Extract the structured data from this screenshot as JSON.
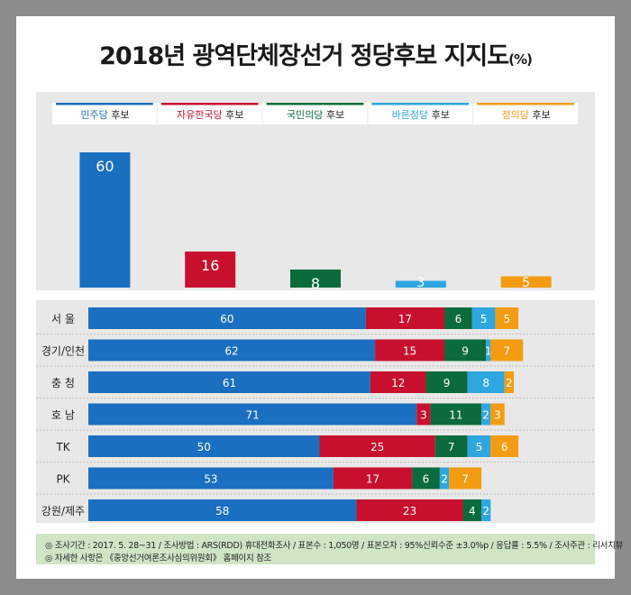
{
  "title": "2018년 광역단체장선거 정당후보 지지도",
  "title_unit": "(%)",
  "colors": {
    "minju": "#1a6fc0",
    "jayu": "#c8102e",
    "gukmin": "#0b6b3a",
    "bareun": "#2ea7e0",
    "jeongui": "#f39c12"
  },
  "chart_data": [
    {
      "type": "bar",
      "categories": [
        "민주당 후보",
        "자유한국당 후보",
        "국민의당 후보",
        "바른정당 후보",
        "정의당 후보"
      ],
      "legend_parties": [
        "민주당",
        "자유한국당",
        "국민의당",
        "바른정당",
        "정의당"
      ],
      "legend_suffix": "후보",
      "values": [
        60,
        16,
        8,
        3,
        5
      ],
      "ylim": [
        0,
        60
      ]
    },
    {
      "type": "bar",
      "stacked": true,
      "orientation": "horizontal",
      "categories": [
        "서 울",
        "경기/인천",
        "충 청",
        "호 남",
        "TK",
        "PK",
        "강원/제주"
      ],
      "series": [
        {
          "name": "민주당",
          "values": [
            60,
            62,
            61,
            71,
            50,
            53,
            58
          ]
        },
        {
          "name": "자유한국당",
          "values": [
            17,
            15,
            12,
            3,
            25,
            17,
            23
          ]
        },
        {
          "name": "국민의당",
          "values": [
            6,
            9,
            9,
            11,
            7,
            6,
            4
          ]
        },
        {
          "name": "바른정당",
          "values": [
            5,
            1,
            8,
            2,
            5,
            2,
            2
          ]
        },
        {
          "name": "정의당",
          "values": [
            5,
            7,
            2,
            3,
            6,
            7,
            null
          ]
        }
      ]
    }
  ],
  "footnote": {
    "line1": "◎ 조사기간 : 2017. 5. 28~31 / 조사방법 : ARS(RDD) 휴대전화조사 / 표본수 : 1,050명 / 표본오차 : 95%신뢰수준 ±3.0%p / 응답률 : 5.5% / 조사주관 : 리서치뷰",
    "line2": "◎ 자세한 사항은 《중앙선거여론조사심의위원회》 홈페이지 참조"
  }
}
